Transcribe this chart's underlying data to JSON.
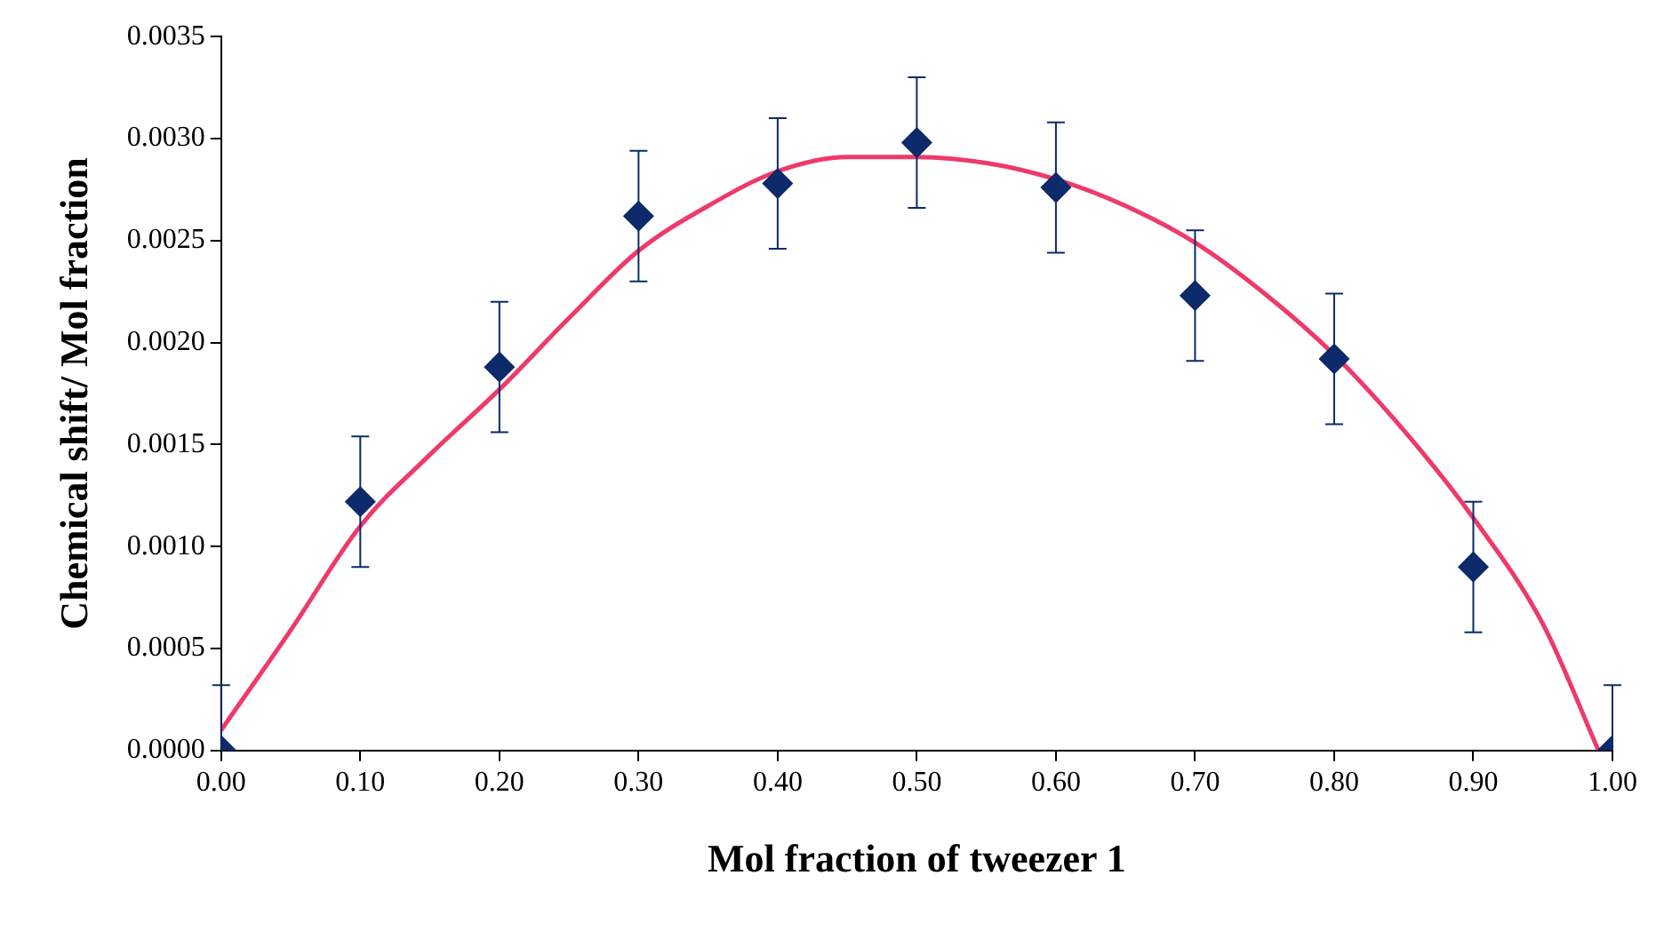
{
  "chart_data": {
    "type": "scatter",
    "xlabel": "Mol fraction of tweezer 1",
    "ylabel": "Chemical shift/ Mol fraction",
    "xlim": [
      0,
      1
    ],
    "ylim": [
      0,
      0.0035
    ],
    "xticks": [
      {
        "value": 0,
        "label": "0.00"
      },
      {
        "value": 0.1,
        "label": "0.10"
      },
      {
        "value": 0.2,
        "label": "0.20"
      },
      {
        "value": 0.3,
        "label": "0.30"
      },
      {
        "value": 0.4,
        "label": "0.40"
      },
      {
        "value": 0.5,
        "label": "0.50"
      },
      {
        "value": 0.6,
        "label": "0.60"
      },
      {
        "value": 0.7,
        "label": "0.70"
      },
      {
        "value": 0.8,
        "label": "0.80"
      },
      {
        "value": 0.9,
        "label": "0.90"
      },
      {
        "value": 1,
        "label": "1.00"
      }
    ],
    "yticks": [
      {
        "value": 0,
        "label": "0.0000"
      },
      {
        "value": 0.0005,
        "label": "0.0005"
      },
      {
        "value": 0.001,
        "label": "0.0010"
      },
      {
        "value": 0.0015,
        "label": "0.0015"
      },
      {
        "value": 0.002,
        "label": "0.0020"
      },
      {
        "value": 0.0025,
        "label": "0.0025"
      },
      {
        "value": 0.003,
        "label": "0.0030"
      },
      {
        "value": 0.0035,
        "label": "0.0035"
      }
    ],
    "grid": false,
    "legend": false,
    "series": [
      {
        "type": "scatter",
        "color": "#0d2a6b",
        "marker": "diamond",
        "x": [
          0,
          0.1,
          0.2,
          0.3,
          0.4,
          0.5,
          0.6,
          0.7,
          0.8,
          0.9,
          1
        ],
        "values": [
          0,
          0.00122,
          0.00188,
          0.00262,
          0.00278,
          0.00298,
          0.00276,
          0.00223,
          0.00192,
          0.0009,
          0
        ],
        "errors": [
          [
            0,
            0.00032
          ],
          0.00032,
          0.00032,
          0.00032,
          0.00032,
          0.00032,
          0.00032,
          0.00032,
          0.00032,
          0.00032,
          [
            0,
            0.00032
          ]
        ]
      },
      {
        "type": "line",
        "color": "#ee3a6a",
        "marker": "none",
        "x": [
          0,
          0.05,
          0.1,
          0.15,
          0.2,
          0.25,
          0.3,
          0.35,
          0.4,
          0.45,
          0.5,
          0.55,
          0.6,
          0.65,
          0.7,
          0.75,
          0.8,
          0.85,
          0.9,
          0.95,
          0.99
        ],
        "values": [
          0.0001,
          0.00059,
          0.0011,
          0.00145,
          0.00177,
          0.00212,
          0.00245,
          0.00267,
          0.00284,
          0.00291,
          0.00291,
          0.00288,
          0.0028,
          0.00267,
          0.00249,
          0.00224,
          0.00194,
          0.00157,
          0.00114,
          0.00062,
          0
        ]
      }
    ]
  }
}
